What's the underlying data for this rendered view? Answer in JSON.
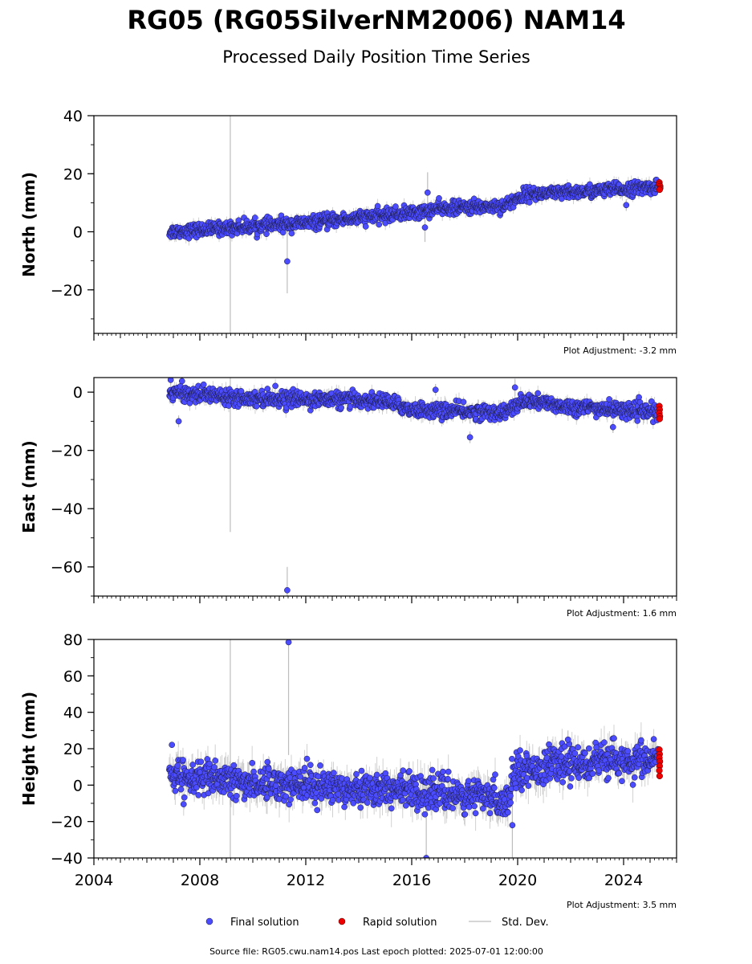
{
  "header": {
    "title": "RG05 (RG05SilverNM2006) NAM14",
    "subtitle": "Processed Daily Position Time Series"
  },
  "footer": {
    "source": "Source file: RG05.cwu.nam14.pos  Last epoch plotted: 2025-07-01 12:00:00"
  },
  "legend": {
    "final": "Final solution",
    "rapid": "Rapid solution",
    "std": "Std. Dev."
  },
  "colors": {
    "final": "#4b4bff",
    "rapid": "#ee0000",
    "std": "#bdbdbd",
    "marker_edge": "#1a1a40"
  },
  "chart_data": [
    {
      "type": "scatter",
      "id": "north",
      "ylabel": "North (mm)",
      "adjustment": "Plot Adjustment: -3.2 mm",
      "xlim": [
        2004,
        2026
      ],
      "ylim": [
        -35,
        40
      ],
      "yticks": [
        40,
        20,
        0,
        -20
      ],
      "ytick_labels": [
        "40",
        "20",
        "0",
        "−20"
      ],
      "xticks": [
        2004,
        2008,
        2012,
        2016,
        2020,
        2024
      ],
      "show_xtick_labels": false,
      "trend": [
        {
          "x": 2006.85,
          "y": 0
        },
        {
          "x": 2012,
          "y": 3
        },
        {
          "x": 2016.5,
          "y": 7
        },
        {
          "x": 2017,
          "y": 8
        },
        {
          "x": 2019.5,
          "y": 9
        },
        {
          "x": 2020.3,
          "y": 13
        },
        {
          "x": 2022,
          "y": 13.5
        },
        {
          "x": 2025.3,
          "y": 15.5
        }
      ],
      "noise": 1.6,
      "noise_breaks": [],
      "outliers": [
        {
          "x": 2011.3,
          "y": -10.2,
          "err": 11
        },
        {
          "x": 2016.6,
          "y": 13.5,
          "err": 7
        },
        {
          "x": 2016.5,
          "y": 1.5,
          "err": 5
        },
        {
          "x": 2024.1,
          "y": 9.2,
          "err": 2
        }
      ],
      "tall_bars": [
        {
          "x": 2009.15,
          "y1": -35,
          "y2": 40
        }
      ],
      "rapid": [
        {
          "x": 2025.35,
          "y": 17
        },
        {
          "x": 2025.35,
          "y": 16.3
        },
        {
          "x": 2025.38,
          "y": 15.7
        },
        {
          "x": 2025.38,
          "y": 15
        },
        {
          "x": 2025.36,
          "y": 14.5
        }
      ]
    },
    {
      "type": "scatter",
      "id": "east",
      "ylabel": "East (mm)",
      "adjustment": "Plot Adjustment: 1.6 mm",
      "xlim": [
        2004,
        2026
      ],
      "ylim": [
        -70,
        5
      ],
      "yticks": [
        0,
        -20,
        -40,
        -60
      ],
      "ytick_labels": [
        "0",
        "−20",
        "−40",
        "−60"
      ],
      "xticks": [
        2004,
        2008,
        2012,
        2016,
        2020,
        2024
      ],
      "show_xtick_labels": false,
      "trend": [
        {
          "x": 2006.85,
          "y": 0
        },
        {
          "x": 2010,
          "y": -2
        },
        {
          "x": 2015,
          "y": -3
        },
        {
          "x": 2016,
          "y": -6
        },
        {
          "x": 2019.5,
          "y": -7
        },
        {
          "x": 2020.3,
          "y": -3
        },
        {
          "x": 2022,
          "y": -5
        },
        {
          "x": 2025.3,
          "y": -7
        }
      ],
      "noise": 1.8,
      "noise_breaks": [],
      "outliers": [
        {
          "x": 2011.3,
          "y": -68,
          "err": 8
        },
        {
          "x": 2006.9,
          "y": 4.2,
          "err": 2
        },
        {
          "x": 2007.2,
          "y": -10,
          "err": 2
        },
        {
          "x": 2016.9,
          "y": 0.8,
          "err": 2
        },
        {
          "x": 2019.9,
          "y": 1.6,
          "err": 3
        },
        {
          "x": 2018.2,
          "y": -15.5,
          "err": 2
        },
        {
          "x": 2023.6,
          "y": -12,
          "err": 2
        }
      ],
      "tall_bars": [
        {
          "x": 2009.15,
          "y1": -48,
          "y2": 5
        }
      ],
      "rapid": [
        {
          "x": 2025.35,
          "y": -4.8
        },
        {
          "x": 2025.36,
          "y": -6
        },
        {
          "x": 2025.35,
          "y": -7.2
        },
        {
          "x": 2025.37,
          "y": -8.3
        },
        {
          "x": 2025.36,
          "y": -9.2
        }
      ]
    },
    {
      "type": "scatter",
      "id": "height",
      "ylabel": "Height (mm)",
      "adjustment": "Plot Adjustment: 3.5 mm",
      "xlim": [
        2004,
        2026
      ],
      "ylim": [
        -40,
        80
      ],
      "yticks": [
        80,
        60,
        40,
        20,
        0,
        -20,
        -40
      ],
      "ytick_labels": [
        "80",
        "60",
        "40",
        "20",
        "0",
        "−20",
        "−40"
      ],
      "xticks": [
        2004,
        2008,
        2012,
        2016,
        2020,
        2024
      ],
      "xtick_labels": [
        "2004",
        "2008",
        "2012",
        "2016",
        "2020",
        "2024"
      ],
      "show_xtick_labels": true,
      "trend": [
        {
          "x": 2006.85,
          "y": 6
        },
        {
          "x": 2009,
          "y": 2
        },
        {
          "x": 2012,
          "y": 0
        },
        {
          "x": 2016,
          "y": -3
        },
        {
          "x": 2019.7,
          "y": -8
        },
        {
          "x": 2019.8,
          "y": 8
        },
        {
          "x": 2022,
          "y": 12
        },
        {
          "x": 2025.3,
          "y": 14
        }
      ],
      "noise": 6.5,
      "noise_breaks": [],
      "outliers": [
        {
          "x": 2011.35,
          "y": 78.5,
          "err": 62
        },
        {
          "x": 2016.55,
          "y": -40,
          "err": 40
        },
        {
          "x": 2019.8,
          "y": -22,
          "err": 20
        },
        {
          "x": 2021.9,
          "y": 25,
          "err": 5
        }
      ],
      "tall_bars": [
        {
          "x": 2009.15,
          "y1": -40,
          "y2": 80
        }
      ],
      "rapid": [
        {
          "x": 2025.35,
          "y": 19.5
        },
        {
          "x": 2025.36,
          "y": 17
        },
        {
          "x": 2025.35,
          "y": 15
        },
        {
          "x": 2025.37,
          "y": 13
        },
        {
          "x": 2025.36,
          "y": 10.5
        },
        {
          "x": 2025.35,
          "y": 8
        },
        {
          "x": 2025.36,
          "y": 5
        }
      ]
    }
  ]
}
